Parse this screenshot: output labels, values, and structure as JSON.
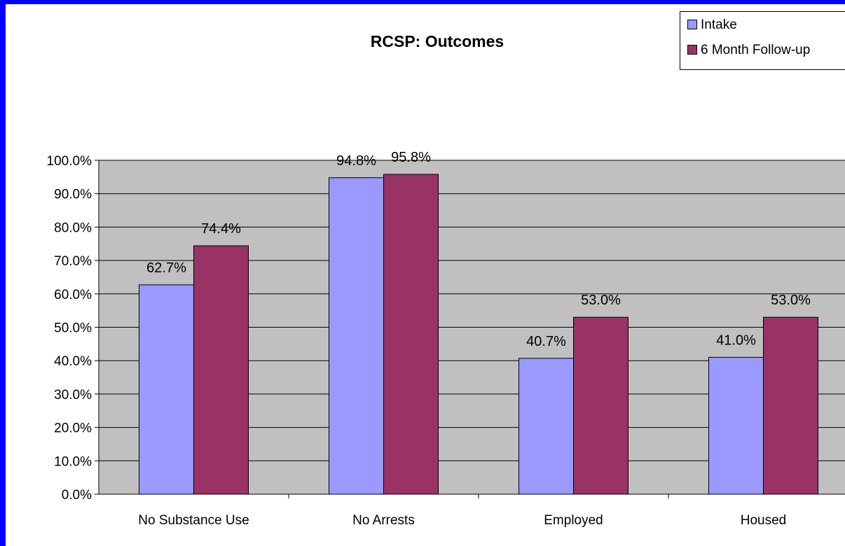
{
  "chart_data": {
    "type": "bar",
    "title": "RCSP: Outcomes",
    "categories": [
      "No Substance Use",
      "No Arrests",
      "Employed",
      "Housed"
    ],
    "series": [
      {
        "name": "Intake",
        "values": [
          62.7,
          94.8,
          40.7,
          41.0
        ],
        "color": "#9999ff",
        "labels": [
          "62.7%",
          "94.8%",
          "40.7%",
          "41.0%"
        ]
      },
      {
        "name": "6 Month Follow-up",
        "values": [
          74.4,
          95.8,
          53.0,
          53.0
        ],
        "color": "#993366",
        "labels": [
          "74.4%",
          "95.8%",
          "53.0%",
          "53.0%"
        ]
      }
    ],
    "ylim": [
      0,
      100
    ],
    "yticks": [
      "0.0%",
      "10.0%",
      "20.0%",
      "30.0%",
      "40.0%",
      "50.0%",
      "60.0%",
      "70.0%",
      "80.0%",
      "90.0%",
      "100.0%"
    ],
    "grid": true,
    "legend_position": "top-right",
    "plot_background": "#c0c0c0",
    "page_background": "#0000ff"
  }
}
